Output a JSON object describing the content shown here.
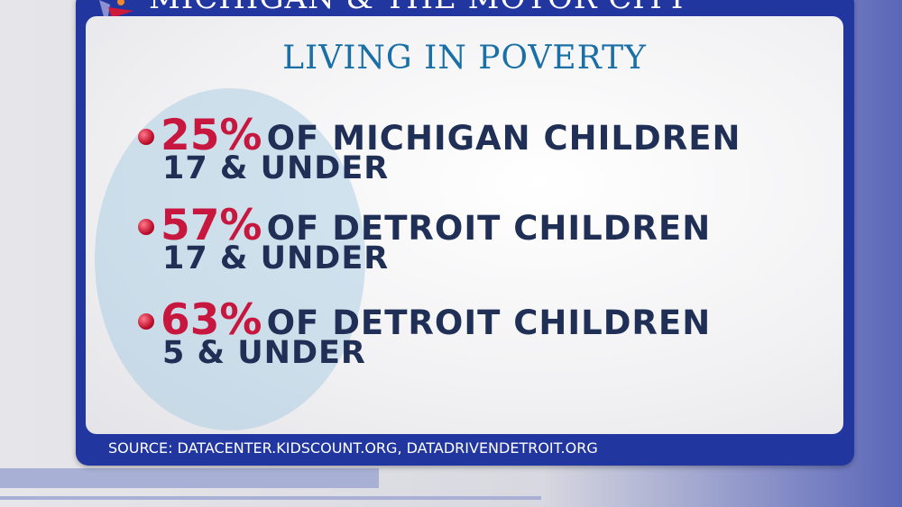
{
  "header": {
    "title": "MICHIGAN & THE MOTOR CITY"
  },
  "card": {
    "title": "LIVING IN POVERTY",
    "items": [
      {
        "percent": "25%",
        "text": "OF MICHIGAN CHILDREN",
        "age": "17 & UNDER"
      },
      {
        "percent": "57%",
        "text": "OF DETROIT CHILDREN",
        "age": "17 & UNDER"
      },
      {
        "percent": "63%",
        "text": "OF DETROIT CHILDREN",
        "age": "5 & UNDER"
      }
    ]
  },
  "source": "SOURCE: DATACENTER.KIDSCOUNT.ORG, DATADRIVENDETROIT.ORG",
  "colors": {
    "panel": "#2236a0",
    "title": "#1a6fa6",
    "percent": "#c8173f",
    "text": "#1f2f55"
  }
}
